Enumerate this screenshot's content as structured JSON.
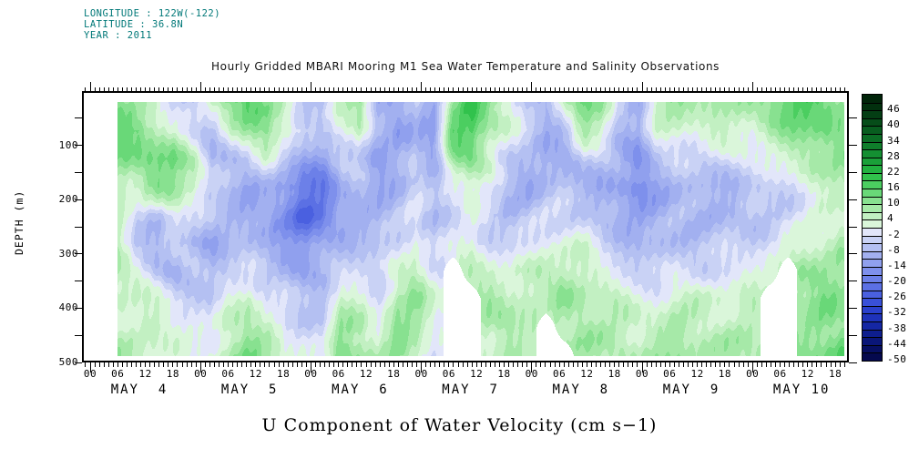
{
  "header": {
    "lines": [
      "LONGITUDE : 122W(-122)",
      "LATITUDE : 36.8N",
      "YEAR : 2011"
    ],
    "color": "#007878"
  },
  "title": "Hourly Gridded MBARI Mooring M1 Sea Water Temperature and Salinity Observations",
  "caption": "U Component of Water Velocity (cm s−1)",
  "chart_data": {
    "type": "heatmap",
    "title": "Hourly Gridded MBARI Mooring M1 Sea Water Temperature and Salinity Observations",
    "value_label": "U Component of Water Velocity (cm s-1)",
    "ylabel": "DEPTH (m)",
    "ylim": [
      0,
      500
    ],
    "yticks": [
      100,
      200,
      300,
      400,
      500
    ],
    "y_minor_step_m": 50,
    "hour_tick_labels": [
      "00",
      "06",
      "12",
      "18"
    ],
    "day_labels": [
      "MAY  4",
      "MAY  5",
      "MAY  6",
      "MAY  7",
      "MAY  8",
      "MAY  9",
      "MAY 10"
    ],
    "time_hours_start": 6,
    "time_hours_end": 164,
    "n_times": 40,
    "depths_m": [
      20,
      72,
      124,
      176,
      228,
      280,
      332,
      384,
      436,
      488
    ],
    "values_units": "cm s-1",
    "values_by_time": [
      [
        10,
        14,
        12,
        8,
        6,
        4,
        8,
        6,
        4,
        8
      ],
      [
        6,
        16,
        10,
        4,
        -4,
        -6,
        2,
        4,
        2,
        6
      ],
      [
        4,
        8,
        14,
        10,
        -6,
        -8,
        -4,
        2,
        6,
        4
      ],
      [
        -4,
        2,
        16,
        12,
        2,
        -6,
        -8,
        -2,
        4,
        2
      ],
      [
        -6,
        -4,
        6,
        8,
        -4,
        -8,
        -6,
        -4,
        2,
        -2
      ],
      [
        4,
        -6,
        -8,
        -4,
        -6,
        -10,
        -8,
        -6,
        -2,
        2
      ],
      [
        14,
        4,
        -6,
        -8,
        -8,
        -6,
        -4,
        2,
        6,
        8
      ],
      [
        18,
        8,
        -4,
        -10,
        -10,
        -8,
        -2,
        6,
        10,
        12
      ],
      [
        10,
        12,
        2,
        -8,
        -12,
        -10,
        -6,
        -2,
        6,
        8
      ],
      [
        4,
        6,
        -6,
        -14,
        -16,
        -12,
        -8,
        -4,
        -2,
        4
      ],
      [
        -6,
        -4,
        -10,
        -20,
        -24,
        -16,
        -10,
        -6,
        -4,
        2
      ],
      [
        -8,
        -6,
        -14,
        -18,
        -20,
        -12,
        -8,
        -6,
        -2,
        -4
      ],
      [
        6,
        2,
        -6,
        -10,
        -12,
        -8,
        -4,
        4,
        10,
        14
      ],
      [
        12,
        6,
        -4,
        -8,
        -10,
        -6,
        -2,
        2,
        8,
        10
      ],
      [
        -8,
        -10,
        -12,
        -10,
        -8,
        -6,
        -4,
        -2,
        2,
        6
      ],
      [
        -12,
        -14,
        -10,
        -8,
        -6,
        -4,
        2,
        8,
        12,
        10
      ],
      [
        -6,
        -8,
        -6,
        -4,
        -2,
        2,
        6,
        10,
        8,
        6
      ],
      [
        -10,
        -12,
        -10,
        -8,
        -6,
        -4,
        0,
        2,
        2,
        -2
      ],
      [
        8,
        16,
        10,
        2,
        -4,
        -2,
        null,
        null,
        null,
        null
      ],
      [
        20,
        18,
        10,
        4,
        0,
        2,
        6,
        null,
        null,
        null
      ],
      [
        12,
        8,
        4,
        -2,
        -4,
        -2,
        4,
        8,
        6,
        4
      ],
      [
        4,
        2,
        -4,
        -6,
        -8,
        -4,
        2,
        6,
        10,
        8
      ],
      [
        -6,
        -4,
        -8,
        -10,
        -6,
        -2,
        4,
        8,
        6,
        4
      ],
      [
        -10,
        -8,
        -12,
        -8,
        -4,
        2,
        6,
        4,
        null,
        null
      ],
      [
        6,
        -6,
        -10,
        -6,
        -2,
        2,
        8,
        10,
        6,
        null
      ],
      [
        14,
        8,
        -4,
        -8,
        -4,
        2,
        6,
        8,
        10,
        8
      ],
      [
        8,
        4,
        -6,
        -10,
        -8,
        -4,
        2,
        6,
        8,
        6
      ],
      [
        -4,
        -6,
        -10,
        -12,
        -10,
        -6,
        -2,
        4,
        6,
        8
      ],
      [
        -8,
        -10,
        -14,
        -16,
        -12,
        -8,
        -4,
        2,
        4,
        6
      ],
      [
        6,
        2,
        -6,
        -10,
        -10,
        -8,
        -4,
        2,
        6,
        8
      ],
      [
        10,
        4,
        -4,
        -8,
        -8,
        -6,
        -2,
        4,
        8,
        10
      ],
      [
        8,
        4,
        -4,
        -8,
        -8,
        -6,
        -2,
        4,
        6,
        8
      ],
      [
        8,
        4,
        -2,
        -8,
        -8,
        -6,
        -2,
        4,
        6,
        8
      ],
      [
        6,
        4,
        -2,
        -8,
        -8,
        -4,
        -2,
        4,
        6,
        8
      ],
      [
        8,
        4,
        -2,
        -6,
        -6,
        -4,
        2,
        4,
        6,
        8
      ],
      [
        12,
        8,
        2,
        -4,
        -6,
        -2,
        4,
        null,
        null,
        null
      ],
      [
        16,
        10,
        4,
        -2,
        -4,
        2,
        null,
        null,
        null,
        null
      ],
      [
        18,
        12,
        6,
        2,
        -2,
        4,
        8,
        10,
        8,
        12
      ],
      [
        14,
        16,
        8,
        4,
        2,
        6,
        10,
        12,
        10,
        14
      ],
      [
        10,
        12,
        14,
        6,
        4,
        8,
        12,
        10,
        12,
        16
      ]
    ],
    "colorbar": {
      "min": -50,
      "max": 52,
      "step": 3,
      "labels": [
        46,
        40,
        34,
        28,
        22,
        16,
        10,
        4,
        -2,
        -8,
        -14,
        -20,
        -26,
        -32,
        -38,
        -44,
        -50
      ],
      "palette_ascending": [
        "#05094e",
        "#070f62",
        "#0a1678",
        "#0e1e8e",
        "#1527a4",
        "#1e32ba",
        "#2a40cc",
        "#3950d8",
        "#4a60e0",
        "#5b70e4",
        "#6c80e8",
        "#7e90ec",
        "#90a0ee",
        "#a2b0f0",
        "#b4c0f2",
        "#c9d2f5",
        "#e2e6fa",
        "#daf6da",
        "#c2f0c2",
        "#a6e9a8",
        "#88e190",
        "#69d878",
        "#4bce60",
        "#31c24c",
        "#22b140",
        "#1aa039",
        "#148f32",
        "#0f7e2b",
        "#0b6d25",
        "#085d1f",
        "#064d19",
        "#043e14",
        "#02300e",
        "#01250a"
      ],
      "missing_color": "#ffffff"
    }
  }
}
